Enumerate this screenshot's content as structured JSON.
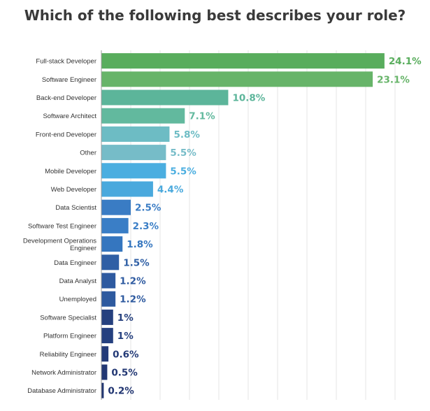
{
  "chart_data": {
    "type": "bar",
    "orientation": "horizontal",
    "title": "Which of the following best describes your role?",
    "categories": [
      "Full-stack Developer",
      "Software Engineer",
      "Back-end Developer",
      "Software Architect",
      "Front-end Developer",
      "Other",
      "Mobile Developer",
      "Web Developer",
      "Data Scientist",
      "Software Test Engineer",
      "Development Operations Engineer",
      "Data Engineer",
      "Data Analyst",
      "Unemployed",
      "Software Specialist",
      "Platform Engineer",
      "Reliability Engineer",
      "Network Administrator",
      "Database Administrator"
    ],
    "category_display_lines": [
      [
        "Full-stack Developer"
      ],
      [
        "Software Engineer"
      ],
      [
        "Back-end Developer"
      ],
      [
        "Software Architect"
      ],
      [
        "Front-end Developer"
      ],
      [
        "Other"
      ],
      [
        "Mobile Developer"
      ],
      [
        "Web Developer"
      ],
      [
        "Data Scientist"
      ],
      [
        "Software Test Engineer"
      ],
      [
        "Development Operations",
        "Engineer"
      ],
      [
        "Data Engineer"
      ],
      [
        "Data Analyst"
      ],
      [
        "Unemployed"
      ],
      [
        "Software Specialist"
      ],
      [
        "Platform Engineer"
      ],
      [
        "Reliability Engineer"
      ],
      [
        "Network Administrator"
      ],
      [
        "Database Administrator"
      ]
    ],
    "values": [
      24.1,
      23.1,
      10.8,
      7.1,
      5.8,
      5.5,
      5.5,
      4.4,
      2.5,
      2.3,
      1.8,
      1.5,
      1.2,
      1.2,
      1,
      1,
      0.6,
      0.5,
      0.2
    ],
    "value_labels": [
      "24.1%",
      "23.1%",
      "10.8%",
      "7.1%",
      "5.8%",
      "5.5%",
      "5.5%",
      "4.4%",
      "2.5%",
      "2.3%",
      "1.8%",
      "1.5%",
      "1.2%",
      "1.2%",
      "1%",
      "1%",
      "0.6%",
      "0.5%",
      "0.2%"
    ],
    "bar_colors": [
      "#59ad5d",
      "#67b469",
      "#5cb59a",
      "#62b99e",
      "#6dbcc4",
      "#76bcc8",
      "#4baee0",
      "#4aa9dd",
      "#3a7cc4",
      "#3a7ec6",
      "#3576bf",
      "#2f5fa5",
      "#2e5aa0",
      "#2e5a9f",
      "#25407e",
      "#25407f",
      "#233a77",
      "#223773",
      "#203470"
    ],
    "xlim": [
      0,
      25
    ],
    "grid": true,
    "legend": "none"
  }
}
